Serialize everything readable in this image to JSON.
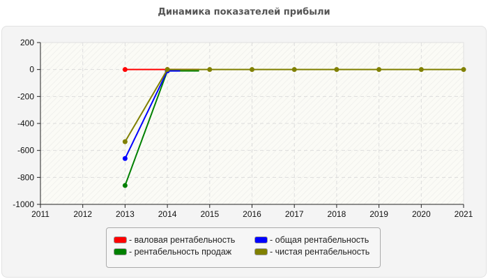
{
  "title": "Динамика показателей прибыли",
  "chart_data": {
    "type": "line",
    "title": "Динамика показателей прибыли",
    "xlabel": "",
    "ylabel": "",
    "x": [
      2011,
      2012,
      2013,
      2014,
      2015,
      2016,
      2017,
      2018,
      2019,
      2020,
      2021
    ],
    "xlim": [
      2011,
      2021
    ],
    "ylim": [
      -1000,
      200
    ],
    "yticks": [
      200,
      0,
      -200,
      -400,
      -600,
      -800,
      -1000
    ],
    "grid": true,
    "legend_position": "bottom",
    "series": [
      {
        "name": "валовая рентабельность",
        "color": "#ff0000",
        "values": [
          null,
          null,
          0,
          0,
          null,
          null,
          null,
          null,
          null,
          null,
          null
        ]
      },
      {
        "name": "общая рентабельность",
        "color": "#0000ff",
        "values": [
          null,
          null,
          -660,
          -10,
          null,
          null,
          null,
          null,
          null,
          null,
          null
        ]
      },
      {
        "name": "рентабельность продаж",
        "color": "#008000",
        "values": [
          null,
          null,
          -860,
          -10,
          null,
          null,
          null,
          null,
          null,
          null,
          null
        ]
      },
      {
        "name": "чистая рентабельность",
        "color": "#808000",
        "values": [
          null,
          null,
          -535,
          0,
          0,
          0,
          0,
          0,
          0,
          0,
          0
        ]
      }
    ]
  },
  "legend": [
    {
      "label": "- валовая рентабельность",
      "color": "#ff0000"
    },
    {
      "label": "- общая рентабельность",
      "color": "#0000ff"
    },
    {
      "label": "- рентабельность продаж",
      "color": "#008000"
    },
    {
      "label": "- чистая рентабельность",
      "color": "#808000"
    }
  ]
}
